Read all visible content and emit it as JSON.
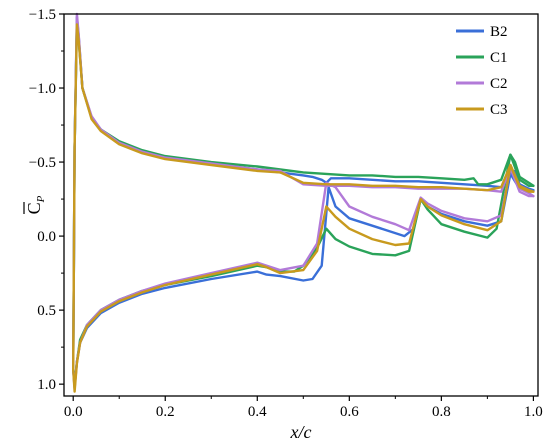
{
  "chart_data": {
    "type": "line",
    "xlabel": "x/c",
    "ylabel": "C_P",
    "ylabel_overline": true,
    "xlim": [
      -0.02,
      1.01
    ],
    "ylim": [
      1.08,
      -1.5
    ],
    "y_inverted": true,
    "xticks": [
      0.0,
      0.2,
      0.4,
      0.6,
      0.8,
      1.0
    ],
    "xtick_labels": [
      "0.0",
      "0.2",
      "0.4",
      "0.6",
      "0.8",
      "1.0"
    ],
    "yticks": [
      -1.5,
      -1.0,
      -0.5,
      0.0,
      0.5,
      1.0
    ],
    "ytick_labels": [
      "−1.5",
      "−1.0",
      "−0.5",
      "0.0",
      "0.5",
      "1.0"
    ],
    "grid": false,
    "legend_position": "top-right",
    "series": [
      {
        "name": "B2",
        "color": "#3a6fd8",
        "upper": [
          [
            0.0,
            0.9
          ],
          [
            0.003,
            -0.6
          ],
          [
            0.008,
            -1.48
          ],
          [
            0.012,
            -1.35
          ],
          [
            0.02,
            -1.0
          ],
          [
            0.04,
            -0.8
          ],
          [
            0.06,
            -0.72
          ],
          [
            0.1,
            -0.63
          ],
          [
            0.15,
            -0.57
          ],
          [
            0.2,
            -0.53
          ],
          [
            0.3,
            -0.49
          ],
          [
            0.4,
            -0.45
          ],
          [
            0.45,
            -0.43
          ],
          [
            0.5,
            -0.41
          ],
          [
            0.52,
            -0.4
          ],
          [
            0.54,
            -0.38
          ],
          [
            0.55,
            -0.36
          ],
          [
            0.56,
            -0.39
          ],
          [
            0.6,
            -0.39
          ],
          [
            0.65,
            -0.38
          ],
          [
            0.7,
            -0.37
          ],
          [
            0.75,
            -0.37
          ],
          [
            0.8,
            -0.36
          ],
          [
            0.85,
            -0.35
          ],
          [
            0.9,
            -0.34
          ],
          [
            0.93,
            -0.33
          ],
          [
            0.95,
            -0.42
          ],
          [
            0.96,
            -0.44
          ],
          [
            0.97,
            -0.35
          ],
          [
            0.99,
            -0.32
          ],
          [
            1.0,
            -0.31
          ]
        ],
        "lower": [
          [
            0.0,
            0.9
          ],
          [
            0.003,
            1.02
          ],
          [
            0.008,
            0.85
          ],
          [
            0.015,
            0.72
          ],
          [
            0.03,
            0.62
          ],
          [
            0.06,
            0.52
          ],
          [
            0.1,
            0.45
          ],
          [
            0.15,
            0.39
          ],
          [
            0.2,
            0.35
          ],
          [
            0.3,
            0.29
          ],
          [
            0.4,
            0.24
          ],
          [
            0.42,
            0.26
          ],
          [
            0.45,
            0.27
          ],
          [
            0.5,
            0.3
          ],
          [
            0.52,
            0.29
          ],
          [
            0.54,
            0.2
          ],
          [
            0.555,
            -0.33
          ],
          [
            0.57,
            -0.2
          ],
          [
            0.6,
            -0.12
          ],
          [
            0.65,
            -0.07
          ],
          [
            0.7,
            -0.02
          ],
          [
            0.72,
            0.0
          ],
          [
            0.74,
            -0.05
          ],
          [
            0.755,
            -0.25
          ],
          [
            0.77,
            -0.2
          ],
          [
            0.8,
            -0.15
          ],
          [
            0.85,
            -0.1
          ],
          [
            0.9,
            -0.07
          ],
          [
            0.93,
            -0.1
          ],
          [
            0.95,
            -0.42
          ],
          [
            0.97,
            -0.32
          ],
          [
            0.99,
            -0.3
          ],
          [
            1.0,
            -0.31
          ]
        ]
      },
      {
        "name": "C1",
        "color": "#2aa35a",
        "upper": [
          [
            0.0,
            0.9
          ],
          [
            0.003,
            -0.6
          ],
          [
            0.008,
            -1.45
          ],
          [
            0.012,
            -1.33
          ],
          [
            0.02,
            -1.0
          ],
          [
            0.04,
            -0.8
          ],
          [
            0.06,
            -0.72
          ],
          [
            0.1,
            -0.64
          ],
          [
            0.15,
            -0.58
          ],
          [
            0.2,
            -0.54
          ],
          [
            0.3,
            -0.5
          ],
          [
            0.4,
            -0.47
          ],
          [
            0.45,
            -0.45
          ],
          [
            0.5,
            -0.43
          ],
          [
            0.55,
            -0.42
          ],
          [
            0.6,
            -0.41
          ],
          [
            0.65,
            -0.41
          ],
          [
            0.7,
            -0.4
          ],
          [
            0.75,
            -0.4
          ],
          [
            0.8,
            -0.39
          ],
          [
            0.85,
            -0.38
          ],
          [
            0.87,
            -0.39
          ],
          [
            0.88,
            -0.35
          ],
          [
            0.9,
            -0.35
          ],
          [
            0.93,
            -0.38
          ],
          [
            0.95,
            -0.55
          ],
          [
            0.96,
            -0.5
          ],
          [
            0.97,
            -0.4
          ],
          [
            0.99,
            -0.36
          ],
          [
            1.0,
            -0.34
          ]
        ],
        "lower": [
          [
            0.0,
            0.9
          ],
          [
            0.003,
            1.0
          ],
          [
            0.008,
            0.85
          ],
          [
            0.015,
            0.7
          ],
          [
            0.03,
            0.6
          ],
          [
            0.06,
            0.5
          ],
          [
            0.1,
            0.43
          ],
          [
            0.15,
            0.37
          ],
          [
            0.2,
            0.33
          ],
          [
            0.3,
            0.27
          ],
          [
            0.4,
            0.2
          ],
          [
            0.42,
            0.21
          ],
          [
            0.45,
            0.24
          ],
          [
            0.48,
            0.24
          ],
          [
            0.5,
            0.2
          ],
          [
            0.53,
            0.08
          ],
          [
            0.55,
            -0.05
          ],
          [
            0.57,
            0.02
          ],
          [
            0.6,
            0.07
          ],
          [
            0.65,
            0.12
          ],
          [
            0.7,
            0.13
          ],
          [
            0.73,
            0.1
          ],
          [
            0.755,
            -0.25
          ],
          [
            0.77,
            -0.18
          ],
          [
            0.8,
            -0.08
          ],
          [
            0.85,
            -0.03
          ],
          [
            0.9,
            0.01
          ],
          [
            0.92,
            -0.05
          ],
          [
            0.95,
            -0.55
          ],
          [
            0.97,
            -0.38
          ],
          [
            0.99,
            -0.34
          ],
          [
            1.0,
            -0.34
          ]
        ]
      },
      {
        "name": "C2",
        "color": "#b27ad8",
        "upper": [
          [
            0.0,
            0.9
          ],
          [
            0.003,
            -0.6
          ],
          [
            0.008,
            -1.5
          ],
          [
            0.012,
            -1.36
          ],
          [
            0.02,
            -1.0
          ],
          [
            0.04,
            -0.81
          ],
          [
            0.06,
            -0.72
          ],
          [
            0.1,
            -0.63
          ],
          [
            0.15,
            -0.57
          ],
          [
            0.2,
            -0.53
          ],
          [
            0.3,
            -0.49
          ],
          [
            0.4,
            -0.45
          ],
          [
            0.45,
            -0.44
          ],
          [
            0.5,
            -0.35
          ],
          [
            0.55,
            -0.34
          ],
          [
            0.6,
            -0.34
          ],
          [
            0.65,
            -0.33
          ],
          [
            0.7,
            -0.33
          ],
          [
            0.75,
            -0.32
          ],
          [
            0.8,
            -0.32
          ],
          [
            0.85,
            -0.32
          ],
          [
            0.9,
            -0.31
          ],
          [
            0.93,
            -0.3
          ],
          [
            0.95,
            -0.46
          ],
          [
            0.97,
            -0.32
          ],
          [
            0.99,
            -0.29
          ],
          [
            1.0,
            -0.27
          ]
        ],
        "lower": [
          [
            0.0,
            0.9
          ],
          [
            0.003,
            1.03
          ],
          [
            0.008,
            0.85
          ],
          [
            0.015,
            0.72
          ],
          [
            0.03,
            0.6
          ],
          [
            0.06,
            0.5
          ],
          [
            0.1,
            0.43
          ],
          [
            0.15,
            0.37
          ],
          [
            0.2,
            0.32
          ],
          [
            0.3,
            0.25
          ],
          [
            0.4,
            0.18
          ],
          [
            0.42,
            0.2
          ],
          [
            0.45,
            0.23
          ],
          [
            0.5,
            0.2
          ],
          [
            0.53,
            0.05
          ],
          [
            0.55,
            -0.36
          ],
          [
            0.57,
            -0.33
          ],
          [
            0.6,
            -0.2
          ],
          [
            0.65,
            -0.13
          ],
          [
            0.7,
            -0.08
          ],
          [
            0.73,
            -0.04
          ],
          [
            0.755,
            -0.26
          ],
          [
            0.77,
            -0.22
          ],
          [
            0.8,
            -0.17
          ],
          [
            0.85,
            -0.12
          ],
          [
            0.9,
            -0.1
          ],
          [
            0.93,
            -0.14
          ],
          [
            0.95,
            -0.46
          ],
          [
            0.97,
            -0.3
          ],
          [
            0.99,
            -0.27
          ],
          [
            1.0,
            -0.27
          ]
        ]
      },
      {
        "name": "C3",
        "color": "#c89a1e",
        "upper": [
          [
            0.0,
            0.9
          ],
          [
            0.003,
            -0.6
          ],
          [
            0.008,
            -1.43
          ],
          [
            0.012,
            -1.32
          ],
          [
            0.02,
            -1.0
          ],
          [
            0.04,
            -0.79
          ],
          [
            0.06,
            -0.71
          ],
          [
            0.1,
            -0.62
          ],
          [
            0.15,
            -0.56
          ],
          [
            0.2,
            -0.52
          ],
          [
            0.3,
            -0.48
          ],
          [
            0.4,
            -0.44
          ],
          [
            0.45,
            -0.43
          ],
          [
            0.5,
            -0.36
          ],
          [
            0.55,
            -0.35
          ],
          [
            0.6,
            -0.35
          ],
          [
            0.65,
            -0.34
          ],
          [
            0.7,
            -0.34
          ],
          [
            0.75,
            -0.33
          ],
          [
            0.8,
            -0.33
          ],
          [
            0.85,
            -0.32
          ],
          [
            0.9,
            -0.31
          ],
          [
            0.93,
            -0.33
          ],
          [
            0.95,
            -0.48
          ],
          [
            0.97,
            -0.34
          ],
          [
            0.99,
            -0.31
          ],
          [
            1.0,
            -0.3
          ]
        ],
        "lower": [
          [
            0.0,
            0.9
          ],
          [
            0.003,
            1.05
          ],
          [
            0.008,
            0.86
          ],
          [
            0.015,
            0.72
          ],
          [
            0.03,
            0.61
          ],
          [
            0.06,
            0.51
          ],
          [
            0.1,
            0.44
          ],
          [
            0.15,
            0.38
          ],
          [
            0.2,
            0.33
          ],
          [
            0.3,
            0.26
          ],
          [
            0.4,
            0.19
          ],
          [
            0.42,
            0.21
          ],
          [
            0.45,
            0.25
          ],
          [
            0.5,
            0.23
          ],
          [
            0.53,
            0.1
          ],
          [
            0.55,
            -0.2
          ],
          [
            0.57,
            -0.13
          ],
          [
            0.6,
            -0.05
          ],
          [
            0.65,
            0.02
          ],
          [
            0.7,
            0.06
          ],
          [
            0.73,
            0.05
          ],
          [
            0.755,
            -0.25
          ],
          [
            0.77,
            -0.2
          ],
          [
            0.8,
            -0.14
          ],
          [
            0.85,
            -0.08
          ],
          [
            0.9,
            -0.04
          ],
          [
            0.93,
            -0.1
          ],
          [
            0.95,
            -0.48
          ],
          [
            0.97,
            -0.33
          ],
          [
            0.99,
            -0.3
          ],
          [
            1.0,
            -0.3
          ]
        ]
      }
    ]
  }
}
